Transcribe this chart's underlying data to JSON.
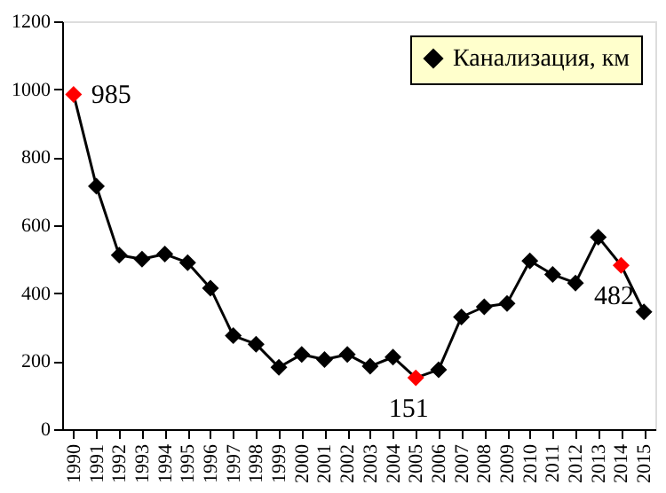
{
  "chart_data": {
    "type": "line",
    "categories": [
      "1990",
      "1991",
      "1992",
      "1993",
      "1994",
      "1995",
      "1996",
      "1997",
      "1998",
      "1999",
      "2000",
      "2001",
      "2002",
      "2003",
      "2004",
      "2005",
      "2006",
      "2007",
      "2008",
      "2009",
      "2010",
      "2011",
      "2012",
      "2013",
      "2014",
      "2015"
    ],
    "series": [
      {
        "name": "Канализация, км",
        "color": "#000000",
        "values": [
          985,
          715,
          512,
          500,
          515,
          490,
          415,
          275,
          250,
          182,
          220,
          205,
          220,
          185,
          212,
          151,
          175,
          330,
          360,
          370,
          495,
          455,
          430,
          565,
          482,
          345
        ],
        "colors": [
          "#ff0000",
          "#000000",
          "#000000",
          "#000000",
          "#000000",
          "#000000",
          "#000000",
          "#000000",
          "#000000",
          "#000000",
          "#000000",
          "#000000",
          "#000000",
          "#000000",
          "#000000",
          "#ff0000",
          "#000000",
          "#000000",
          "#000000",
          "#000000",
          "#000000",
          "#000000",
          "#000000",
          "#000000",
          "#ff0000",
          "#000000"
        ],
        "value_labels": [
          "985",
          null,
          null,
          null,
          null,
          null,
          null,
          null,
          null,
          null,
          null,
          null,
          null,
          null,
          null,
          "151",
          null,
          null,
          null,
          null,
          null,
          null,
          null,
          null,
          "482",
          null
        ]
      }
    ],
    "ylim": [
      0,
      1200
    ],
    "yticks": [
      0,
      200,
      400,
      600,
      800,
      1000,
      1200
    ],
    "grid": false,
    "legend": "top right",
    "marker": "diamond",
    "line_style": "solid"
  }
}
